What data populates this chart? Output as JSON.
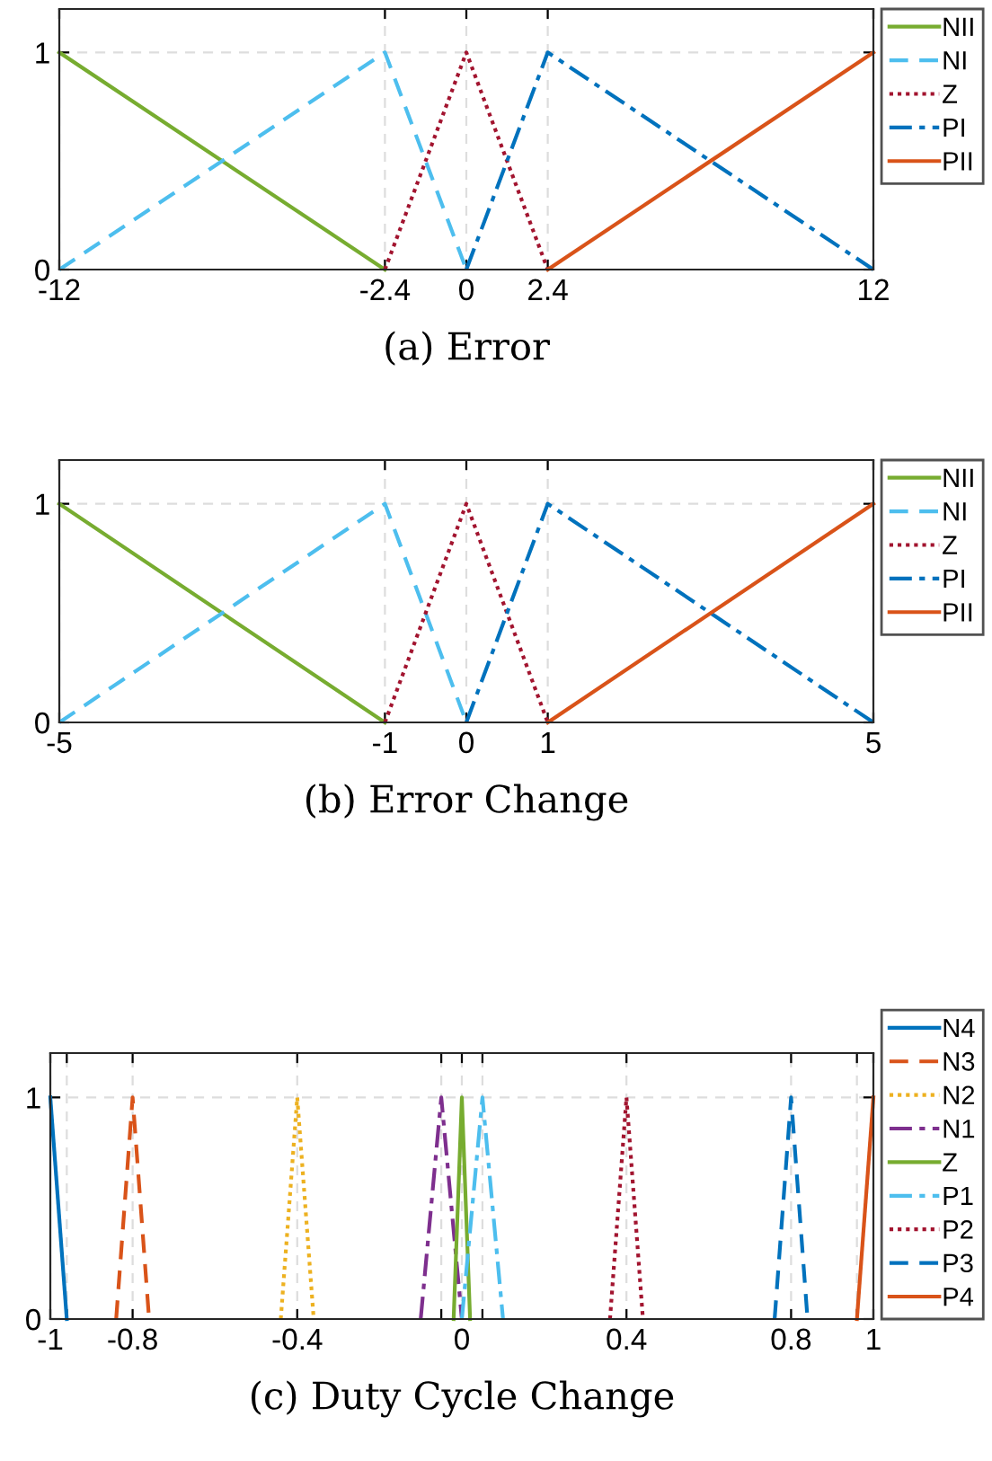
{
  "chart_data": [
    {
      "type": "line",
      "xlabel": "(a) Error",
      "xlim": [
        -12,
        12
      ],
      "ylim": [
        0,
        1.2
      ],
      "xticks": [
        -12,
        -2.4,
        0,
        2.4,
        12
      ],
      "yticks": [
        0,
        1
      ],
      "grid": true,
      "legend": "top right",
      "series": [
        {
          "name": "NII",
          "color": "#77ac30",
          "line_style": "solid",
          "x": [
            -12,
            -2.4
          ],
          "values": [
            1,
            0
          ]
        },
        {
          "name": "NI",
          "color": "#4dbeee",
          "line_style": "dashed",
          "x": [
            -12,
            -2.4,
            0
          ],
          "values": [
            0,
            1,
            0
          ]
        },
        {
          "name": "Z",
          "color": "#a2142f",
          "line_style": "dotted",
          "x": [
            -2.4,
            0,
            2.4
          ],
          "values": [
            0,
            1,
            0
          ]
        },
        {
          "name": "PI",
          "color": "#0072bd",
          "line_style": "dashdot",
          "x": [
            0,
            2.4,
            12
          ],
          "values": [
            0,
            1,
            0
          ]
        },
        {
          "name": "PII",
          "color": "#d95319",
          "line_style": "solid",
          "x": [
            2.4,
            12
          ],
          "values": [
            0,
            1
          ]
        }
      ]
    },
    {
      "type": "line",
      "xlabel": "(b) Error Change",
      "xlim": [
        -5,
        5
      ],
      "ylim": [
        0,
        1.2
      ],
      "xticks": [
        -5,
        -1,
        0,
        1,
        5
      ],
      "yticks": [
        0,
        1
      ],
      "grid": true,
      "legend": "top right",
      "series": [
        {
          "name": "NII",
          "color": "#77ac30",
          "line_style": "solid",
          "x": [
            -5,
            -1
          ],
          "values": [
            1,
            0
          ]
        },
        {
          "name": "NI",
          "color": "#4dbeee",
          "line_style": "dashed",
          "x": [
            -5,
            -1,
            0
          ],
          "values": [
            0,
            1,
            0
          ]
        },
        {
          "name": "Z",
          "color": "#a2142f",
          "line_style": "dotted",
          "x": [
            -1,
            0,
            1
          ],
          "values": [
            0,
            1,
            0
          ]
        },
        {
          "name": "PI",
          "color": "#0072bd",
          "line_style": "dashdot",
          "x": [
            0,
            1,
            5
          ],
          "values": [
            0,
            1,
            0
          ]
        },
        {
          "name": "PII",
          "color": "#d95319",
          "line_style": "solid",
          "x": [
            1,
            5
          ],
          "values": [
            0,
            1
          ]
        }
      ]
    },
    {
      "type": "line",
      "xlabel": "(c) Duty Cycle Change",
      "xlim": [
        -1,
        1
      ],
      "ylim": [
        0,
        1.2
      ],
      "xticks": [
        -1,
        {
          "value": -0.96,
          "label": null
        },
        -0.8,
        -0.4,
        {
          "value": -0.05,
          "label": null
        },
        0,
        {
          "value": 0.05,
          "label": null
        },
        0.4,
        0.8,
        {
          "value": 0.96,
          "label": null
        },
        1
      ],
      "yticks": [
        0,
        1
      ],
      "grid": true,
      "legend": "right",
      "series": [
        {
          "name": "N4",
          "color": "#0072bd",
          "line_style": "solid",
          "x": [
            -1,
            -0.96
          ],
          "values": [
            1,
            0
          ]
        },
        {
          "name": "N3",
          "color": "#d95319",
          "line_style": "dashed",
          "x": [
            -0.84,
            -0.8,
            -0.76
          ],
          "values": [
            0,
            1,
            0
          ]
        },
        {
          "name": "N2",
          "color": "#edb120",
          "line_style": "dotted",
          "x": [
            -0.44,
            -0.4,
            -0.36
          ],
          "values": [
            0,
            1,
            0
          ]
        },
        {
          "name": "N1",
          "color": "#7e2f8e",
          "line_style": "dashdot",
          "x": [
            -0.1,
            -0.05,
            0
          ],
          "values": [
            0,
            1,
            0
          ]
        },
        {
          "name": "Z",
          "color": "#77ac30",
          "line_style": "solid",
          "x": [
            -0.02,
            0,
            0.02
          ],
          "values": [
            0,
            1,
            0
          ]
        },
        {
          "name": "P1",
          "color": "#4dbeee",
          "line_style": "dashdot",
          "x": [
            0,
            0.05,
            0.1
          ],
          "values": [
            0,
            1,
            0
          ]
        },
        {
          "name": "P2",
          "color": "#a2142f",
          "line_style": "dotted",
          "x": [
            0.36,
            0.4,
            0.44
          ],
          "values": [
            0,
            1,
            0
          ]
        },
        {
          "name": "P3",
          "color": "#0072bd",
          "line_style": "dashed",
          "x": [
            0.76,
            0.8,
            0.84
          ],
          "values": [
            0,
            1,
            0
          ]
        },
        {
          "name": "P4",
          "color": "#d95319",
          "line_style": "solid",
          "x": [
            0.96,
            1
          ],
          "values": [
            0,
            1
          ]
        }
      ]
    }
  ]
}
